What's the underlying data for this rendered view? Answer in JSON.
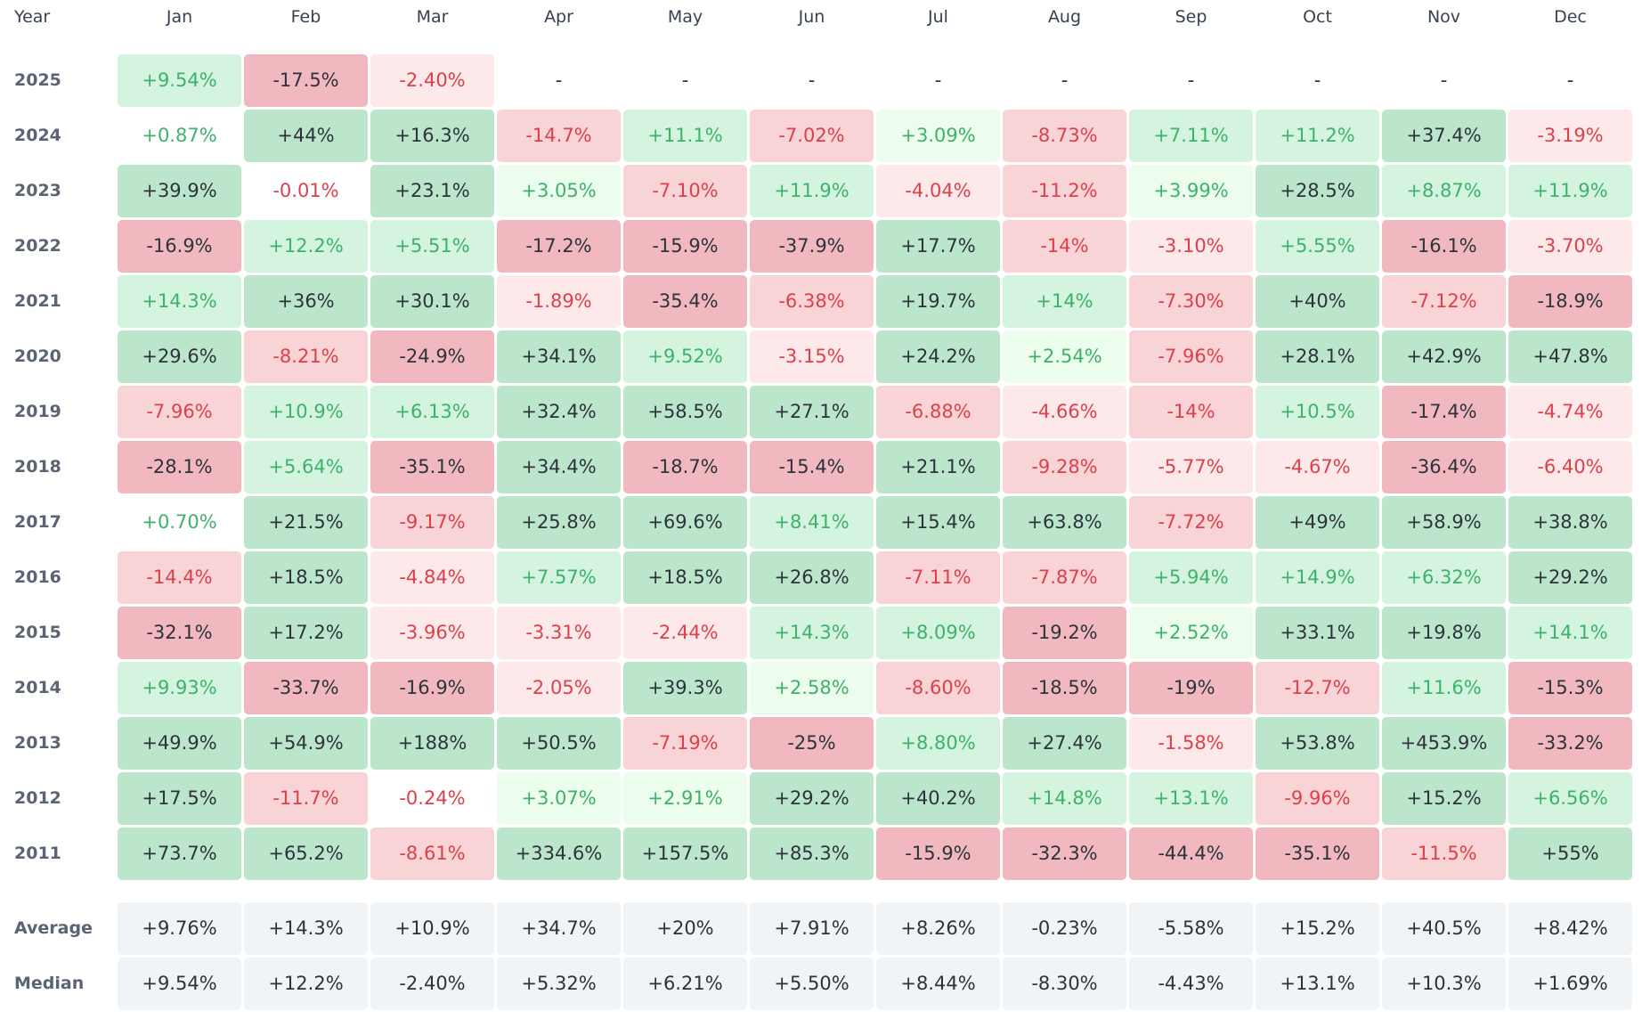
{
  "header": {
    "year_label": "Year",
    "months": [
      "Jan",
      "Feb",
      "Mar",
      "Apr",
      "May",
      "Jun",
      "Jul",
      "Aug",
      "Sep",
      "Oct",
      "Nov",
      "Dec"
    ]
  },
  "colors": {
    "strong_pos_bg": "#bce6cb",
    "mid_pos_bg": "#d4f4e0",
    "light_pos_bg": "#ecfdee",
    "neutral_bg": "#ffffff",
    "light_neg_bg": "#fde9e9",
    "mid_neg_bg": "#f8d4d7",
    "strong_neg_bg": "#f1b8bf",
    "pos_text": "#3db26a",
    "neg_text": "#de3f4a",
    "dark_text": "#2d333c"
  },
  "rows": [
    {
      "year": "2025",
      "cells": [
        {
          "text": "+9.54%",
          "tone": "mid_pos"
        },
        {
          "text": "-17.5%",
          "tone": "strong_neg"
        },
        {
          "text": "-2.40%",
          "tone": "light_neg"
        },
        {
          "text": "-",
          "tone": "empty"
        },
        {
          "text": "-",
          "tone": "empty"
        },
        {
          "text": "-",
          "tone": "empty"
        },
        {
          "text": "-",
          "tone": "empty"
        },
        {
          "text": "-",
          "tone": "empty"
        },
        {
          "text": "-",
          "tone": "empty"
        },
        {
          "text": "-",
          "tone": "empty"
        },
        {
          "text": "-",
          "tone": "empty"
        },
        {
          "text": "-",
          "tone": "empty"
        }
      ]
    },
    {
      "year": "2024",
      "cells": [
        {
          "text": "+0.87%",
          "tone": "neutral_pos"
        },
        {
          "text": "+44%",
          "tone": "strong_pos"
        },
        {
          "text": "+16.3%",
          "tone": "strong_pos"
        },
        {
          "text": "-14.7%",
          "tone": "mid_neg"
        },
        {
          "text": "+11.1%",
          "tone": "mid_pos"
        },
        {
          "text": "-7.02%",
          "tone": "mid_neg"
        },
        {
          "text": "+3.09%",
          "tone": "light_pos"
        },
        {
          "text": "-8.73%",
          "tone": "mid_neg"
        },
        {
          "text": "+7.11%",
          "tone": "mid_pos"
        },
        {
          "text": "+11.2%",
          "tone": "mid_pos"
        },
        {
          "text": "+37.4%",
          "tone": "strong_pos"
        },
        {
          "text": "-3.19%",
          "tone": "light_neg"
        }
      ]
    },
    {
      "year": "2023",
      "cells": [
        {
          "text": "+39.9%",
          "tone": "strong_pos"
        },
        {
          "text": "-0.01%",
          "tone": "neutral_neg"
        },
        {
          "text": "+23.1%",
          "tone": "strong_pos"
        },
        {
          "text": "+3.05%",
          "tone": "light_pos"
        },
        {
          "text": "-7.10%",
          "tone": "mid_neg"
        },
        {
          "text": "+11.9%",
          "tone": "mid_pos"
        },
        {
          "text": "-4.04%",
          "tone": "light_neg"
        },
        {
          "text": "-11.2%",
          "tone": "mid_neg"
        },
        {
          "text": "+3.99%",
          "tone": "light_pos"
        },
        {
          "text": "+28.5%",
          "tone": "strong_pos"
        },
        {
          "text": "+8.87%",
          "tone": "mid_pos"
        },
        {
          "text": "+11.9%",
          "tone": "mid_pos"
        }
      ]
    },
    {
      "year": "2022",
      "cells": [
        {
          "text": "-16.9%",
          "tone": "strong_neg"
        },
        {
          "text": "+12.2%",
          "tone": "mid_pos"
        },
        {
          "text": "+5.51%",
          "tone": "mid_pos"
        },
        {
          "text": "-17.2%",
          "tone": "strong_neg"
        },
        {
          "text": "-15.9%",
          "tone": "strong_neg"
        },
        {
          "text": "-37.9%",
          "tone": "strong_neg"
        },
        {
          "text": "+17.7%",
          "tone": "strong_pos"
        },
        {
          "text": "-14%",
          "tone": "mid_neg"
        },
        {
          "text": "-3.10%",
          "tone": "light_neg"
        },
        {
          "text": "+5.55%",
          "tone": "mid_pos"
        },
        {
          "text": "-16.1%",
          "tone": "strong_neg"
        },
        {
          "text": "-3.70%",
          "tone": "light_neg"
        }
      ]
    },
    {
      "year": "2021",
      "cells": [
        {
          "text": "+14.3%",
          "tone": "mid_pos"
        },
        {
          "text": "+36%",
          "tone": "strong_pos"
        },
        {
          "text": "+30.1%",
          "tone": "strong_pos"
        },
        {
          "text": "-1.89%",
          "tone": "light_neg"
        },
        {
          "text": "-35.4%",
          "tone": "strong_neg"
        },
        {
          "text": "-6.38%",
          "tone": "mid_neg"
        },
        {
          "text": "+19.7%",
          "tone": "strong_pos"
        },
        {
          "text": "+14%",
          "tone": "mid_pos"
        },
        {
          "text": "-7.30%",
          "tone": "mid_neg"
        },
        {
          "text": "+40%",
          "tone": "strong_pos"
        },
        {
          "text": "-7.12%",
          "tone": "mid_neg"
        },
        {
          "text": "-18.9%",
          "tone": "strong_neg"
        }
      ]
    },
    {
      "year": "2020",
      "cells": [
        {
          "text": "+29.6%",
          "tone": "strong_pos"
        },
        {
          "text": "-8.21%",
          "tone": "mid_neg"
        },
        {
          "text": "-24.9%",
          "tone": "strong_neg"
        },
        {
          "text": "+34.1%",
          "tone": "strong_pos"
        },
        {
          "text": "+9.52%",
          "tone": "mid_pos"
        },
        {
          "text": "-3.15%",
          "tone": "light_neg"
        },
        {
          "text": "+24.2%",
          "tone": "strong_pos"
        },
        {
          "text": "+2.54%",
          "tone": "light_pos"
        },
        {
          "text": "-7.96%",
          "tone": "mid_neg"
        },
        {
          "text": "+28.1%",
          "tone": "strong_pos"
        },
        {
          "text": "+42.9%",
          "tone": "strong_pos"
        },
        {
          "text": "+47.8%",
          "tone": "strong_pos"
        }
      ]
    },
    {
      "year": "2019",
      "cells": [
        {
          "text": "-7.96%",
          "tone": "mid_neg"
        },
        {
          "text": "+10.9%",
          "tone": "mid_pos"
        },
        {
          "text": "+6.13%",
          "tone": "mid_pos"
        },
        {
          "text": "+32.4%",
          "tone": "strong_pos"
        },
        {
          "text": "+58.5%",
          "tone": "strong_pos"
        },
        {
          "text": "+27.1%",
          "tone": "strong_pos"
        },
        {
          "text": "-6.88%",
          "tone": "mid_neg"
        },
        {
          "text": "-4.66%",
          "tone": "light_neg"
        },
        {
          "text": "-14%",
          "tone": "mid_neg"
        },
        {
          "text": "+10.5%",
          "tone": "mid_pos"
        },
        {
          "text": "-17.4%",
          "tone": "strong_neg"
        },
        {
          "text": "-4.74%",
          "tone": "light_neg"
        }
      ]
    },
    {
      "year": "2018",
      "cells": [
        {
          "text": "-28.1%",
          "tone": "strong_neg"
        },
        {
          "text": "+5.64%",
          "tone": "mid_pos"
        },
        {
          "text": "-35.1%",
          "tone": "strong_neg"
        },
        {
          "text": "+34.4%",
          "tone": "strong_pos"
        },
        {
          "text": "-18.7%",
          "tone": "strong_neg"
        },
        {
          "text": "-15.4%",
          "tone": "strong_neg"
        },
        {
          "text": "+21.1%",
          "tone": "strong_pos"
        },
        {
          "text": "-9.28%",
          "tone": "mid_neg"
        },
        {
          "text": "-5.77%",
          "tone": "light_neg"
        },
        {
          "text": "-4.67%",
          "tone": "light_neg"
        },
        {
          "text": "-36.4%",
          "tone": "strong_neg"
        },
        {
          "text": "-6.40%",
          "tone": "light_neg"
        }
      ]
    },
    {
      "year": "2017",
      "cells": [
        {
          "text": "+0.70%",
          "tone": "neutral_pos"
        },
        {
          "text": "+21.5%",
          "tone": "strong_pos"
        },
        {
          "text": "-9.17%",
          "tone": "mid_neg"
        },
        {
          "text": "+25.8%",
          "tone": "strong_pos"
        },
        {
          "text": "+69.6%",
          "tone": "strong_pos"
        },
        {
          "text": "+8.41%",
          "tone": "mid_pos"
        },
        {
          "text": "+15.4%",
          "tone": "strong_pos"
        },
        {
          "text": "+63.8%",
          "tone": "strong_pos"
        },
        {
          "text": "-7.72%",
          "tone": "mid_neg"
        },
        {
          "text": "+49%",
          "tone": "strong_pos"
        },
        {
          "text": "+58.9%",
          "tone": "strong_pos"
        },
        {
          "text": "+38.8%",
          "tone": "strong_pos"
        }
      ]
    },
    {
      "year": "2016",
      "cells": [
        {
          "text": "-14.4%",
          "tone": "mid_neg"
        },
        {
          "text": "+18.5%",
          "tone": "strong_pos"
        },
        {
          "text": "-4.84%",
          "tone": "light_neg"
        },
        {
          "text": "+7.57%",
          "tone": "mid_pos"
        },
        {
          "text": "+18.5%",
          "tone": "strong_pos"
        },
        {
          "text": "+26.8%",
          "tone": "strong_pos"
        },
        {
          "text": "-7.11%",
          "tone": "mid_neg"
        },
        {
          "text": "-7.87%",
          "tone": "mid_neg"
        },
        {
          "text": "+5.94%",
          "tone": "mid_pos"
        },
        {
          "text": "+14.9%",
          "tone": "mid_pos"
        },
        {
          "text": "+6.32%",
          "tone": "mid_pos"
        },
        {
          "text": "+29.2%",
          "tone": "strong_pos"
        }
      ]
    },
    {
      "year": "2015",
      "cells": [
        {
          "text": "-32.1%",
          "tone": "strong_neg"
        },
        {
          "text": "+17.2%",
          "tone": "strong_pos"
        },
        {
          "text": "-3.96%",
          "tone": "light_neg"
        },
        {
          "text": "-3.31%",
          "tone": "light_neg"
        },
        {
          "text": "-2.44%",
          "tone": "light_neg"
        },
        {
          "text": "+14.3%",
          "tone": "mid_pos"
        },
        {
          "text": "+8.09%",
          "tone": "mid_pos"
        },
        {
          "text": "-19.2%",
          "tone": "strong_neg"
        },
        {
          "text": "+2.52%",
          "tone": "light_pos"
        },
        {
          "text": "+33.1%",
          "tone": "strong_pos"
        },
        {
          "text": "+19.8%",
          "tone": "strong_pos"
        },
        {
          "text": "+14.1%",
          "tone": "mid_pos"
        }
      ]
    },
    {
      "year": "2014",
      "cells": [
        {
          "text": "+9.93%",
          "tone": "mid_pos"
        },
        {
          "text": "-33.7%",
          "tone": "strong_neg"
        },
        {
          "text": "-16.9%",
          "tone": "strong_neg"
        },
        {
          "text": "-2.05%",
          "tone": "light_neg"
        },
        {
          "text": "+39.3%",
          "tone": "strong_pos"
        },
        {
          "text": "+2.58%",
          "tone": "light_pos"
        },
        {
          "text": "-8.60%",
          "tone": "mid_neg"
        },
        {
          "text": "-18.5%",
          "tone": "strong_neg"
        },
        {
          "text": "-19%",
          "tone": "strong_neg"
        },
        {
          "text": "-12.7%",
          "tone": "mid_neg"
        },
        {
          "text": "+11.6%",
          "tone": "mid_pos"
        },
        {
          "text": "-15.3%",
          "tone": "strong_neg"
        }
      ]
    },
    {
      "year": "2013",
      "cells": [
        {
          "text": "+49.9%",
          "tone": "strong_pos"
        },
        {
          "text": "+54.9%",
          "tone": "strong_pos"
        },
        {
          "text": "+188%",
          "tone": "strong_pos"
        },
        {
          "text": "+50.5%",
          "tone": "strong_pos"
        },
        {
          "text": "-7.19%",
          "tone": "mid_neg"
        },
        {
          "text": "-25%",
          "tone": "strong_neg"
        },
        {
          "text": "+8.80%",
          "tone": "mid_pos"
        },
        {
          "text": "+27.4%",
          "tone": "strong_pos"
        },
        {
          "text": "-1.58%",
          "tone": "light_neg"
        },
        {
          "text": "+53.8%",
          "tone": "strong_pos"
        },
        {
          "text": "+453.9%",
          "tone": "strong_pos"
        },
        {
          "text": "-33.2%",
          "tone": "strong_neg"
        }
      ]
    },
    {
      "year": "2012",
      "cells": [
        {
          "text": "+17.5%",
          "tone": "strong_pos"
        },
        {
          "text": "-11.7%",
          "tone": "mid_neg"
        },
        {
          "text": "-0.24%",
          "tone": "neutral_neg"
        },
        {
          "text": "+3.07%",
          "tone": "light_pos"
        },
        {
          "text": "+2.91%",
          "tone": "light_pos"
        },
        {
          "text": "+29.2%",
          "tone": "strong_pos"
        },
        {
          "text": "+40.2%",
          "tone": "strong_pos"
        },
        {
          "text": "+14.8%",
          "tone": "mid_pos"
        },
        {
          "text": "+13.1%",
          "tone": "mid_pos"
        },
        {
          "text": "-9.96%",
          "tone": "mid_neg"
        },
        {
          "text": "+15.2%",
          "tone": "strong_pos"
        },
        {
          "text": "+6.56%",
          "tone": "mid_pos"
        }
      ]
    },
    {
      "year": "2011",
      "cells": [
        {
          "text": "+73.7%",
          "tone": "strong_pos"
        },
        {
          "text": "+65.2%",
          "tone": "strong_pos"
        },
        {
          "text": "-8.61%",
          "tone": "mid_neg"
        },
        {
          "text": "+334.6%",
          "tone": "strong_pos"
        },
        {
          "text": "+157.5%",
          "tone": "strong_pos"
        },
        {
          "text": "+85.3%",
          "tone": "strong_pos"
        },
        {
          "text": "-15.9%",
          "tone": "strong_neg"
        },
        {
          "text": "-32.3%",
          "tone": "strong_neg"
        },
        {
          "text": "-44.4%",
          "tone": "strong_neg"
        },
        {
          "text": "-35.1%",
          "tone": "strong_neg"
        },
        {
          "text": "-11.5%",
          "tone": "mid_neg"
        },
        {
          "text": "+55%",
          "tone": "strong_pos"
        }
      ]
    }
  ],
  "stats": [
    {
      "label": "Average",
      "values": [
        "+9.76%",
        "+14.3%",
        "+10.9%",
        "+34.7%",
        "+20%",
        "+7.91%",
        "+8.26%",
        "-0.23%",
        "-5.58%",
        "+15.2%",
        "+40.5%",
        "+8.42%"
      ]
    },
    {
      "label": "Median",
      "values": [
        "+9.54%",
        "+12.2%",
        "-2.40%",
        "+5.32%",
        "+6.21%",
        "+5.50%",
        "+8.44%",
        "-8.30%",
        "-4.43%",
        "+13.1%",
        "+10.3%",
        "+1.69%"
      ]
    }
  ]
}
